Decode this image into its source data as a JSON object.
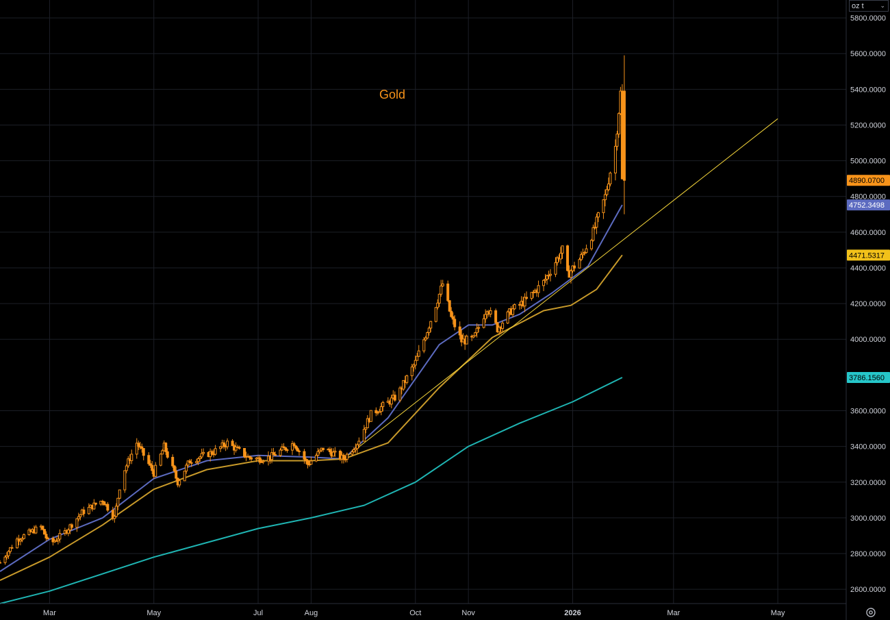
{
  "unit_selector": {
    "label": "oz t",
    "icon": "chevron-down-icon"
  },
  "settings": {
    "icon": "gear-icon"
  },
  "price_labels": [
    {
      "id": "last-price",
      "value": "4890.0700",
      "bg": "#f7931a",
      "fg": "#000000",
      "price": 4890.07
    },
    {
      "id": "ma-short",
      "value": "4752.3498",
      "bg": "#5c6bc0",
      "fg": "#ffffff",
      "price": 4752.3498
    },
    {
      "id": "ma-mid",
      "value": "4471.5317",
      "bg": "#f2c11a",
      "fg": "#000000",
      "price": 4471.5317
    },
    {
      "id": "ma-long",
      "value": "3786.1560",
      "bg": "#26c6c9",
      "fg": "#000000",
      "price": 3786.156
    }
  ],
  "chart_data": {
    "type": "candlestick",
    "title": "Gold",
    "y_ticks": [
      "5800.0000",
      "5600.0000",
      "5400.0000",
      "5200.0000",
      "5000.0000",
      "4800.0000",
      "4600.0000",
      "4400.0000",
      "4200.0000",
      "4000.0000",
      "3600.0000",
      "3400.0000",
      "3200.0000",
      "3000.0000",
      "2800.0000",
      "2600.0000"
    ],
    "x_ticks": [
      "Mar",
      "May",
      "Jul",
      "Aug",
      "Oct",
      "Nov",
      "2026",
      "Mar",
      "May"
    ],
    "x_tick_dates": [
      "2025-03-01",
      "2025-05-01",
      "2025-07-01",
      "2025-08-01",
      "2025-10-01",
      "2025-11-01",
      "2026-01-01",
      "2026-03-01",
      "2026-05-01"
    ],
    "ylim": [
      2520,
      5900
    ],
    "xlim": [
      "2025-01-31",
      "2026-06-10"
    ],
    "grid": true,
    "colors": {
      "candle": "#f7931a",
      "title": "#f7931a",
      "ma_short": "#5c6bc0",
      "ma_mid": "#c89a2a",
      "ma_long": "#1fb5b3",
      "trendline": "#f2d33a"
    },
    "price_anchors": [
      [
        "2025-01-31",
        2750
      ],
      [
        "2025-02-10",
        2880
      ],
      [
        "2025-02-24",
        2950
      ],
      [
        "2025-03-01",
        2850
      ],
      [
        "2025-03-10",
        2920
      ],
      [
        "2025-03-20",
        3030
      ],
      [
        "2025-04-01",
        3100
      ],
      [
        "2025-04-08",
        3000
      ],
      [
        "2025-04-12",
        3230
      ],
      [
        "2025-04-21",
        3420
      ],
      [
        "2025-05-01",
        3250
      ],
      [
        "2025-05-07",
        3400
      ],
      [
        "2025-05-15",
        3200
      ],
      [
        "2025-05-22",
        3320
      ],
      [
        "2025-06-05",
        3370
      ],
      [
        "2025-06-13",
        3420
      ],
      [
        "2025-06-25",
        3340
      ],
      [
        "2025-07-01",
        3330
      ],
      [
        "2025-07-08",
        3340
      ],
      [
        "2025-07-22",
        3420
      ],
      [
        "2025-07-30",
        3300
      ],
      [
        "2025-08-08",
        3390
      ],
      [
        "2025-08-20",
        3330
      ],
      [
        "2025-08-28",
        3420
      ],
      [
        "2025-09-05",
        3580
      ],
      [
        "2025-09-20",
        3680
      ],
      [
        "2025-10-01",
        3870
      ],
      [
        "2025-10-08",
        4050
      ],
      [
        "2025-10-17",
        4310
      ],
      [
        "2025-10-22",
        4120
      ],
      [
        "2025-10-28",
        3990
      ],
      [
        "2025-11-04",
        4000
      ],
      [
        "2025-11-12",
        4180
      ],
      [
        "2025-11-18",
        4060
      ],
      [
        "2025-11-26",
        4160
      ],
      [
        "2025-12-05",
        4220
      ],
      [
        "2025-12-15",
        4320
      ],
      [
        "2025-12-26",
        4500
      ],
      [
        "2025-12-29",
        4360
      ],
      [
        "2026-01-06",
        4460
      ],
      [
        "2026-01-13",
        4600
      ],
      [
        "2026-01-20",
        4800
      ],
      [
        "2026-01-26",
        5080
      ],
      [
        "2026-01-29",
        5380
      ],
      [
        "2026-01-30",
        4890
      ]
    ],
    "series": [
      {
        "name": "",
        "role": "ma_short",
        "points": [
          [
            "2025-01-31",
            2700
          ],
          [
            "2025-03-01",
            2880
          ],
          [
            "2025-04-01",
            3000
          ],
          [
            "2025-05-01",
            3220
          ],
          [
            "2025-06-01",
            3320
          ],
          [
            "2025-07-01",
            3350
          ],
          [
            "2025-08-01",
            3340
          ],
          [
            "2025-08-20",
            3330
          ],
          [
            "2025-09-15",
            3560
          ],
          [
            "2025-10-15",
            3970
          ],
          [
            "2025-11-01",
            4080
          ],
          [
            "2025-11-15",
            4080
          ],
          [
            "2025-12-01",
            4140
          ],
          [
            "2025-12-20",
            4260
          ],
          [
            "2026-01-10",
            4410
          ],
          [
            "2026-01-30",
            4752.35
          ]
        ]
      },
      {
        "name": "",
        "role": "ma_mid",
        "points": [
          [
            "2025-01-31",
            2650
          ],
          [
            "2025-03-01",
            2780
          ],
          [
            "2025-04-01",
            2960
          ],
          [
            "2025-05-01",
            3160
          ],
          [
            "2025-06-01",
            3270
          ],
          [
            "2025-07-01",
            3320
          ],
          [
            "2025-08-01",
            3320
          ],
          [
            "2025-08-20",
            3330
          ],
          [
            "2025-09-15",
            3420
          ],
          [
            "2025-10-15",
            3730
          ],
          [
            "2025-11-15",
            4010
          ],
          [
            "2025-12-15",
            4160
          ],
          [
            "2025-12-31",
            4190
          ],
          [
            "2026-01-15",
            4280
          ],
          [
            "2026-01-30",
            4471.53
          ]
        ]
      },
      {
        "name": "",
        "role": "ma_long",
        "points": [
          [
            "2025-01-31",
            2520
          ],
          [
            "2025-03-01",
            2590
          ],
          [
            "2025-05-01",
            2780
          ],
          [
            "2025-07-01",
            2940
          ],
          [
            "2025-08-01",
            3000
          ],
          [
            "2025-09-01",
            3070
          ],
          [
            "2025-10-01",
            3200
          ],
          [
            "2025-11-01",
            3400
          ],
          [
            "2025-12-01",
            3530
          ],
          [
            "2026-01-01",
            3650
          ],
          [
            "2026-01-30",
            3786.16
          ]
        ]
      },
      {
        "name": "",
        "role": "trendline",
        "points": [
          [
            "2025-08-20",
            3330
          ],
          [
            "2026-05-01",
            5235
          ]
        ]
      }
    ]
  }
}
